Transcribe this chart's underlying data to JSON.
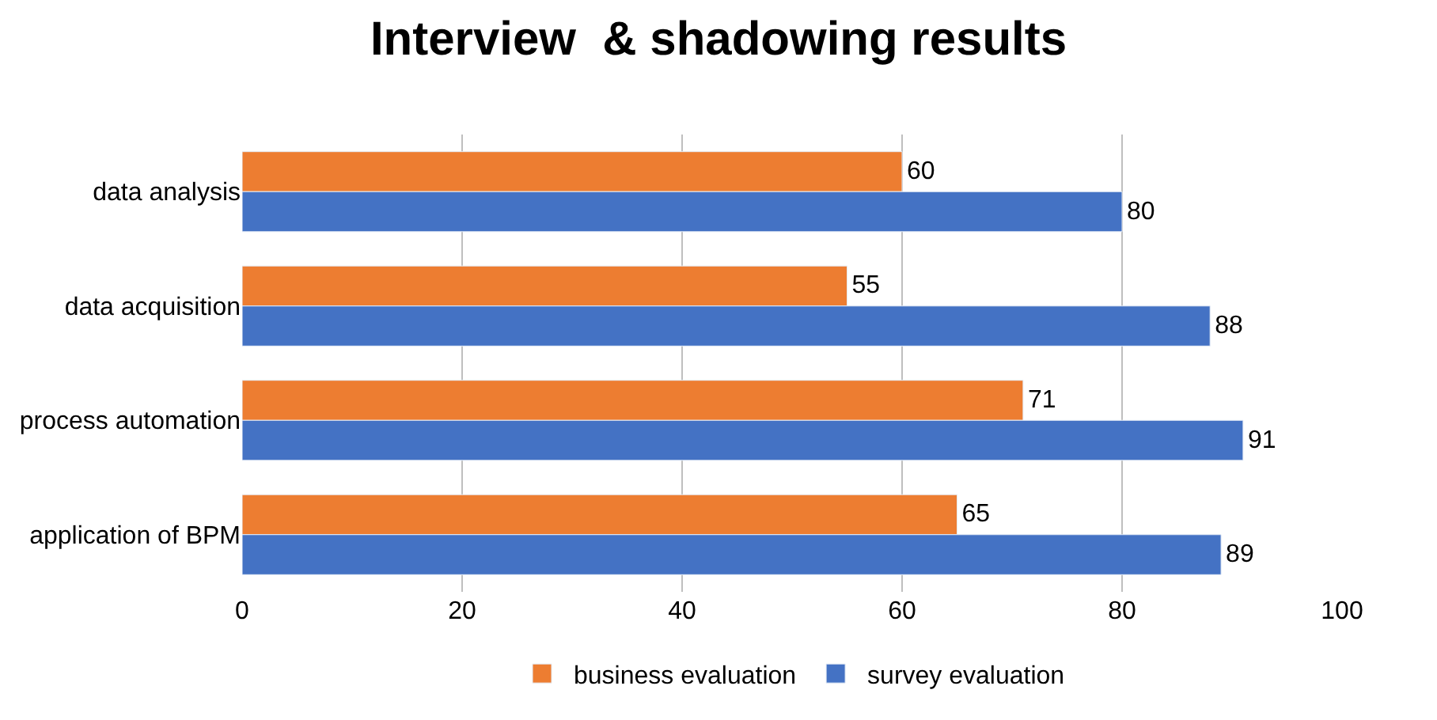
{
  "chart_data": {
    "type": "bar",
    "orientation": "horizontal",
    "title": "Interview  & shadowing results",
    "categories": [
      "data analysis",
      "data acquisition",
      "process automation",
      "application of BPM"
    ],
    "series": [
      {
        "name": "business evaluation",
        "color": "#ed7d31",
        "values": [
          60,
          55,
          71,
          65
        ]
      },
      {
        "name": "survey evaluation",
        "color": "#4472c4",
        "values": [
          80,
          88,
          91,
          89
        ]
      }
    ],
    "xlim": [
      0,
      100
    ],
    "xticks": [
      0,
      20,
      40,
      60,
      80,
      100
    ],
    "grid": "x",
    "legend": "bottom",
    "data_labels": true
  }
}
